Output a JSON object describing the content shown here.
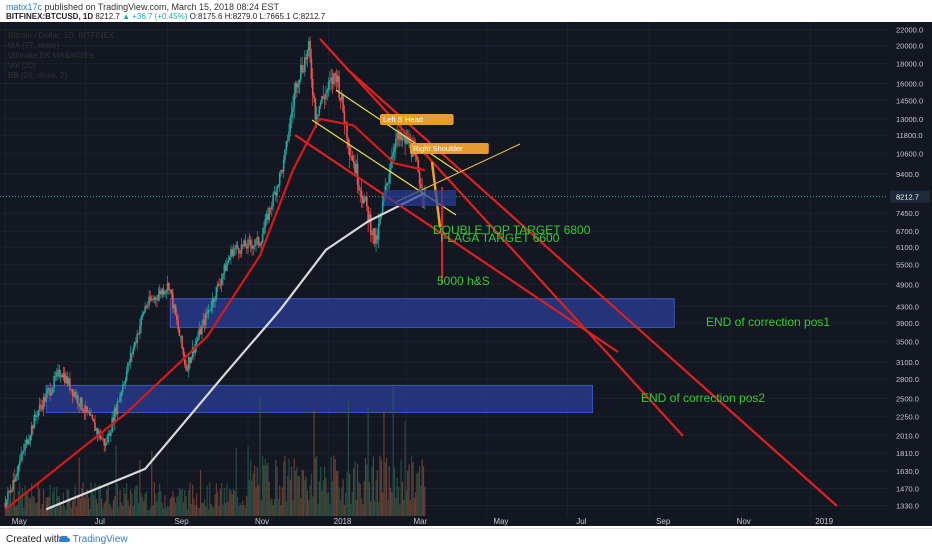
{
  "header": {
    "user": "matix17c",
    "published_text": "published on TradingView.com, March 15, 2018 08:24 EST",
    "symbol": "BITFINEX:BTCUSD, 1D",
    "last": "8212.7",
    "change": "▲ +36.7 (+0.45%)",
    "ohlc": "O:8175.6 H:8279.0 L:7665.1 C:8212.7"
  },
  "legend": {
    "title": "Bitcoin / Dollar, 1D, BITFINEX",
    "lines": [
      "MA (77, close)",
      "Ultimate BK MA&#039;s",
      "Vol (20)",
      "BB (20, close, 2)"
    ]
  },
  "footer": {
    "created": "Created with",
    "brand": "TradingView"
  },
  "colors": {
    "bg": "#131722",
    "grid": "#1c2130",
    "up": "#26a69a",
    "down": "#ef5350",
    "ma_red": "#d7191c",
    "ma_white": "#d9d9d9",
    "annot_green": "#33cc33",
    "zone_blue": "#2a3f9a",
    "price_label": "#1e2a3a"
  },
  "chart_data": {
    "type": "candlestick",
    "y_scale": "log",
    "ylim": [
      1250,
      23000
    ],
    "x_ticks": [
      "May",
      "Jul",
      "Sep",
      "Nov",
      "2018",
      "Mar",
      "May",
      "Jul",
      "Sep",
      "Nov",
      "2019"
    ],
    "y_ticks": [
      22000,
      20000,
      18000,
      16000,
      14500,
      13000,
      11800,
      10600,
      9400,
      8212.7,
      7450,
      6700,
      6100,
      5500,
      4900,
      4300,
      3900,
      3500,
      3100,
      2800,
      2500,
      2250,
      2010,
      1810,
      1630,
      1470,
      1330
    ],
    "current_price": 8212.7,
    "price_path": [
      [
        "2017-05-01",
        1350
      ],
      [
        "2017-05-25",
        2300
      ],
      [
        "2017-06-12",
        2950
      ],
      [
        "2017-07-16",
        1900
      ],
      [
        "2017-08-15",
        4300
      ],
      [
        "2017-09-02",
        4900
      ],
      [
        "2017-09-15",
        3000
      ],
      [
        "2017-10-20",
        6000
      ],
      [
        "2017-11-10",
        6300
      ],
      [
        "2017-11-28",
        10000
      ],
      [
        "2017-12-08",
        16500
      ],
      [
        "2017-12-17",
        19500
      ],
      [
        "2017-12-22",
        13500
      ],
      [
        "2018-01-07",
        17000
      ],
      [
        "2018-01-17",
        11000
      ],
      [
        "2018-02-06",
        6200
      ],
      [
        "2018-02-20",
        11500
      ],
      [
        "2018-03-04",
        11300
      ],
      [
        "2018-03-15",
        8212.7
      ]
    ],
    "ma_red": [
      [
        "2017-05-01",
        1300
      ],
      [
        "2017-08-01",
        2300
      ],
      [
        "2017-10-01",
        3600
      ],
      [
        "2017-11-10",
        5800
      ],
      [
        "2017-12-05",
        9600
      ],
      [
        "2017-12-25",
        13000
      ],
      [
        "2018-01-20",
        12500
      ],
      [
        "2018-02-20",
        10000
      ],
      [
        "2018-03-15",
        9600
      ]
    ],
    "ma_white": [
      [
        "2017-06-01",
        1300
      ],
      [
        "2017-08-15",
        1650
      ],
      [
        "2017-10-15",
        2900
      ],
      [
        "2017-11-25",
        4200
      ],
      [
        "2017-12-30",
        6000
      ],
      [
        "2018-01-31",
        7100
      ],
      [
        "2018-03-15",
        8400
      ]
    ],
    "annotations": [
      "Left Shoulder",
      "Head",
      "Right Shoulder",
      "DOUBLE TOP TARGET 6800",
      "FLAGA TARGET 6600",
      "5000 h&S",
      "END of correction pos1",
      "END of correction pos2"
    ],
    "zones": [
      {
        "from": "2017-09-03",
        "to": "2018-09-20",
        "low": 3800,
        "high": 4500
      },
      {
        "from": "2017-06-01",
        "to": "2018-07-20",
        "low": 2300,
        "high": 2700
      }
    ]
  }
}
